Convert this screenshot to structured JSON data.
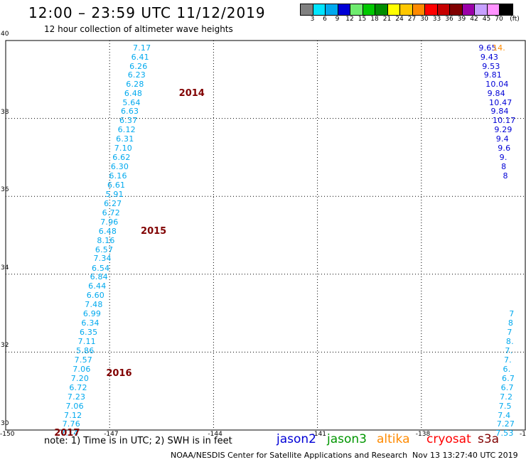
{
  "header": {
    "title": "12:00 – 23:59 UTC 11/12/2019",
    "subtitle": "12 hour collection of altimeter wave heights"
  },
  "legend": {
    "labels": [
      "3",
      "6",
      "9",
      "12",
      "15",
      "18",
      "21",
      "24",
      "27",
      "30",
      "33",
      "36",
      "39",
      "42",
      "45",
      "70"
    ],
    "unit": "(ft)",
    "colors": [
      "#808080",
      "#00e5ff",
      "#00a9ee",
      "#0000d6",
      "#6fec6f",
      "#00c800",
      "#008d00",
      "#ffff00",
      "#ffc800",
      "#ff8a00",
      "#ff0000",
      "#c60000",
      "#800000",
      "#9c00a9",
      "#c7a0ff",
      "#ff92ff",
      "#000000"
    ]
  },
  "axes": {
    "lat_labels": [
      "40",
      "38",
      "36",
      "34",
      "32",
      "30"
    ],
    "lon_labels": [
      "-150",
      "-147",
      "-144",
      "-141",
      "-138",
      "-135"
    ],
    "lat_range": [
      30,
      40
    ],
    "lon_range": [
      -150,
      -135
    ]
  },
  "track_west": {
    "color": "#00a9ee",
    "observations": [
      {
        "lon": -146.08,
        "lat": 39.8,
        "value": "7.17"
      },
      {
        "lon": -146.13,
        "lat": 39.56,
        "value": "6.41"
      },
      {
        "lon": -146.18,
        "lat": 39.33,
        "value": "6.26"
      },
      {
        "lon": -146.23,
        "lat": 39.1,
        "value": "6.23"
      },
      {
        "lon": -146.28,
        "lat": 38.87,
        "value": "6.28"
      },
      {
        "lon": -146.33,
        "lat": 38.64,
        "value": "6.48"
      },
      {
        "lon": -146.38,
        "lat": 38.4,
        "value": "5.64"
      },
      {
        "lon": -146.43,
        "lat": 38.17,
        "value": "6.63"
      },
      {
        "lon": -146.47,
        "lat": 37.93,
        "value": "6.37"
      },
      {
        "lon": -146.52,
        "lat": 37.7,
        "value": "6.12"
      },
      {
        "lon": -146.57,
        "lat": 37.46,
        "value": "6.31"
      },
      {
        "lon": -146.62,
        "lat": 37.22,
        "value": "7.10"
      },
      {
        "lon": -146.67,
        "lat": 36.99,
        "value": "6.62"
      },
      {
        "lon": -146.72,
        "lat": 36.75,
        "value": "6.30"
      },
      {
        "lon": -146.77,
        "lat": 36.52,
        "value": "6.16"
      },
      {
        "lon": -146.82,
        "lat": 36.28,
        "value": "6.61"
      },
      {
        "lon": -146.87,
        "lat": 36.04,
        "value": "5.91"
      },
      {
        "lon": -146.92,
        "lat": 35.81,
        "value": "6.27"
      },
      {
        "lon": -146.97,
        "lat": 35.57,
        "value": "6.72"
      },
      {
        "lon": -147.02,
        "lat": 35.33,
        "value": "7.96"
      },
      {
        "lon": -147.07,
        "lat": 35.1,
        "value": "6.48"
      },
      {
        "lon": -147.12,
        "lat": 34.86,
        "value": "8.16"
      },
      {
        "lon": -147.17,
        "lat": 34.62,
        "value": "6.57"
      },
      {
        "lon": -147.22,
        "lat": 34.39,
        "value": "7.34"
      },
      {
        "lon": -147.27,
        "lat": 34.15,
        "value": "6.54"
      },
      {
        "lon": -147.32,
        "lat": 33.92,
        "value": "6.84"
      },
      {
        "lon": -147.37,
        "lat": 33.68,
        "value": "6.44"
      },
      {
        "lon": -147.42,
        "lat": 33.44,
        "value": "6.60"
      },
      {
        "lon": -147.47,
        "lat": 33.21,
        "value": "7.48"
      },
      {
        "lon": -147.52,
        "lat": 32.97,
        "value": "6.99"
      },
      {
        "lon": -147.57,
        "lat": 32.73,
        "value": "6.34"
      },
      {
        "lon": -147.62,
        "lat": 32.5,
        "value": "6.35"
      },
      {
        "lon": -147.67,
        "lat": 32.26,
        "value": "7.11"
      },
      {
        "lon": -147.72,
        "lat": 32.02,
        "value": "5.86"
      },
      {
        "lon": -147.77,
        "lat": 31.79,
        "value": "7.57"
      },
      {
        "lon": -147.82,
        "lat": 31.55,
        "value": "7.06"
      },
      {
        "lon": -147.87,
        "lat": 31.32,
        "value": "7.20"
      },
      {
        "lon": -147.92,
        "lat": 31.08,
        "value": "6.72"
      },
      {
        "lon": -147.97,
        "lat": 30.84,
        "value": "7.23"
      },
      {
        "lon": -148.02,
        "lat": 30.61,
        "value": "7.06"
      },
      {
        "lon": -148.07,
        "lat": 30.37,
        "value": "7.12"
      },
      {
        "lon": -148.12,
        "lat": 30.14,
        "value": "7.76"
      },
      {
        "lon": -148.17,
        "lat": 29.9,
        "value": "7.14"
      }
    ],
    "time_labels": [
      {
        "lon": -145.0,
        "lat": 38.64,
        "text": "2014"
      },
      {
        "lon": -146.1,
        "lat": 35.1,
        "text": "2015"
      },
      {
        "lon": -147.1,
        "lat": 31.45,
        "text": "2016"
      },
      {
        "lon": -148.6,
        "lat": 29.9,
        "text": "2017"
      }
    ]
  },
  "track_east_blue": {
    "color": "#0000d6",
    "observations": [
      {
        "lon": -136.1,
        "lat": 39.8,
        "value": "9.65"
      },
      {
        "lon": -136.05,
        "lat": 39.56,
        "value": "9.43"
      },
      {
        "lon": -136.0,
        "lat": 39.33,
        "value": "9.53"
      },
      {
        "lon": -135.95,
        "lat": 39.1,
        "value": "9.81"
      },
      {
        "lon": -135.9,
        "lat": 38.87,
        "value": "10.04"
      },
      {
        "lon": -135.85,
        "lat": 38.64,
        "value": "9.84"
      },
      {
        "lon": -135.8,
        "lat": 38.4,
        "value": "10.47"
      },
      {
        "lon": -135.75,
        "lat": 38.17,
        "value": "9.84"
      },
      {
        "lon": -135.7,
        "lat": 37.93,
        "value": "10.17"
      },
      {
        "lon": -135.65,
        "lat": 37.7,
        "value": "9.29"
      },
      {
        "lon": -135.6,
        "lat": 37.46,
        "value": "9.4"
      },
      {
        "lon": -135.55,
        "lat": 37.22,
        "value": "9.6"
      },
      {
        "lon": -135.5,
        "lat": 36.99,
        "value": "9."
      },
      {
        "lon": -135.45,
        "lat": 36.75,
        "value": "8"
      },
      {
        "lon": -135.4,
        "lat": 36.52,
        "value": "8"
      }
    ]
  },
  "track_east_orange": {
    "color": "#ff8a00",
    "observations": [
      {
        "lon": -135.7,
        "lat": 39.8,
        "value": "14."
      }
    ]
  },
  "track_east_cyan": {
    "color": "#00a9ee",
    "observations": [
      {
        "lon": -135.22,
        "lat": 32.97,
        "value": "7"
      },
      {
        "lon": -135.25,
        "lat": 32.73,
        "value": "8"
      },
      {
        "lon": -135.28,
        "lat": 32.5,
        "value": "7"
      },
      {
        "lon": -135.31,
        "lat": 32.26,
        "value": "8."
      },
      {
        "lon": -135.34,
        "lat": 32.02,
        "value": "7."
      },
      {
        "lon": -135.37,
        "lat": 31.79,
        "value": "7."
      },
      {
        "lon": -135.4,
        "lat": 31.55,
        "value": "6."
      },
      {
        "lon": -135.43,
        "lat": 31.32,
        "value": "6.7"
      },
      {
        "lon": -135.46,
        "lat": 31.08,
        "value": "6.7"
      },
      {
        "lon": -135.49,
        "lat": 30.84,
        "value": "7.2"
      },
      {
        "lon": -135.52,
        "lat": 30.61,
        "value": "7.5"
      },
      {
        "lon": -135.55,
        "lat": 30.37,
        "value": "7.4"
      },
      {
        "lon": -135.58,
        "lat": 30.14,
        "value": "7.27"
      },
      {
        "lon": -135.61,
        "lat": 29.9,
        "value": "7.53"
      }
    ]
  },
  "notes": {
    "text": "note:  1) Time is in UTC;  2) SWH is in feet"
  },
  "satellites": [
    {
      "name": "jason2",
      "color": "#0000d6"
    },
    {
      "name": "jason3",
      "color": "#009600"
    },
    {
      "name": "altika",
      "color": "#ff8a00"
    },
    {
      "name": "cryosat",
      "color": "#ff0000"
    },
    {
      "name": "s3a",
      "color": "#800000"
    }
  ],
  "footer": {
    "center": "NOAA/NESDIS Center for Satellite Applications and Research",
    "timestamp": "Nov 13 13:27:40 UTC 2019"
  }
}
